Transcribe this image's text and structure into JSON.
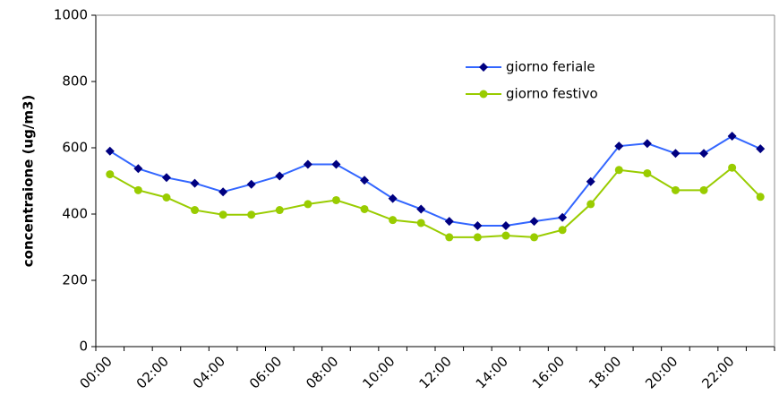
{
  "chart_data": {
    "type": "line",
    "y_label": "concentraione (ug/m3)",
    "categories": [
      "00:00",
      null,
      "02:00",
      null,
      "04:00",
      null,
      "06:00",
      null,
      "08:00",
      null,
      "10:00",
      null,
      "12:00",
      null,
      "14:00",
      null,
      "16:00",
      null,
      "18:00",
      null,
      "20:00",
      null,
      "22:00",
      null
    ],
    "series": [
      {
        "name": "giorno feriale",
        "color": "#3366ff",
        "marker_color": "#000080",
        "marker": "diamond",
        "values": [
          590,
          537,
          510,
          493,
          467,
          490,
          515,
          550,
          550,
          502,
          447,
          415,
          378,
          365,
          365,
          378,
          390,
          498,
          605,
          613,
          583,
          583,
          635,
          597
        ]
      },
      {
        "name": "giorno festivo",
        "color": "#99cc00",
        "marker_color": "#99cc00",
        "marker": "circle",
        "values": [
          520,
          472,
          450,
          412,
          398,
          398,
          412,
          430,
          442,
          415,
          382,
          373,
          330,
          330,
          335,
          330,
          352,
          430,
          533,
          523,
          472,
          472,
          540,
          452
        ]
      }
    ],
    "ylim": [
      0,
      1000
    ],
    "yticks": [
      0,
      200,
      400,
      600,
      800,
      1000
    ],
    "grid": false,
    "legend": "upper right"
  }
}
